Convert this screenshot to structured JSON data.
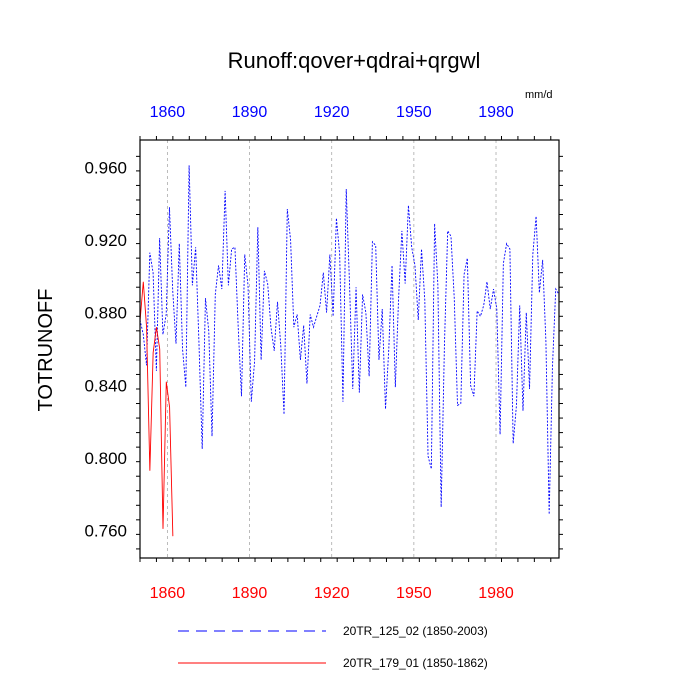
{
  "chart_data": {
    "type": "line",
    "title": "Runoff:qover+qdrai+qrgwl",
    "units": "mm/d",
    "ylabel": "TOTRUNOFF",
    "ylim": [
      0.745,
      0.975
    ],
    "yticks": [
      0.76,
      0.8,
      0.84,
      0.88,
      0.92,
      0.96
    ],
    "ytick_labels": [
      "0.760",
      "0.800",
      "0.840",
      "0.880",
      "0.920",
      "0.960"
    ],
    "bottom_axis": {
      "xlim": [
        1850,
        2003
      ],
      "ticks": [
        1860,
        1890,
        1920,
        1950,
        1980
      ],
      "tick_labels": [
        "1860",
        "1890",
        "1920",
        "1950",
        "1980"
      ],
      "color": "#ff0000"
    },
    "top_axis": {
      "xlim": [
        1850,
        2003
      ],
      "ticks": [
        1860,
        1890,
        1920,
        1950,
        1980
      ],
      "tick_labels": [
        "1860",
        "1890",
        "1920",
        "1950",
        "1980"
      ],
      "color": "#0000ff"
    },
    "grid": "vertical dashed at x ticks",
    "legend_position": "bottom",
    "series": [
      {
        "name": "20TR_125_02 (1850-2003)",
        "color": "#0000ff",
        "dash": "dashed",
        "x_start": 1850,
        "x_end": 2003,
        "values": [
          0.876,
          0.868,
          0.851,
          0.913,
          0.902,
          0.848,
          0.921,
          0.868,
          0.879,
          0.938,
          0.892,
          0.863,
          0.918,
          0.86,
          0.839,
          0.961,
          0.895,
          0.916,
          0.864,
          0.805,
          0.888,
          0.87,
          0.812,
          0.89,
          0.906,
          0.893,
          0.947,
          0.895,
          0.915,
          0.916,
          0.872,
          0.834,
          0.912,
          0.895,
          0.831,
          0.853,
          0.927,
          0.854,
          0.903,
          0.896,
          0.872,
          0.859,
          0.886,
          0.862,
          0.824,
          0.937,
          0.92,
          0.872,
          0.879,
          0.854,
          0.873,
          0.841,
          0.879,
          0.872,
          0.878,
          0.884,
          0.902,
          0.88,
          0.912,
          0.878,
          0.932,
          0.912,
          0.831,
          0.948,
          0.896,
          0.838,
          0.894,
          0.836,
          0.89,
          0.88,
          0.845,
          0.919,
          0.917,
          0.854,
          0.882,
          0.827,
          0.86,
          0.906,
          0.839,
          0.888,
          0.925,
          0.896,
          0.939,
          0.916,
          0.906,
          0.876,
          0.915,
          0.887,
          0.801,
          0.794,
          0.929,
          0.895,
          0.773,
          0.862,
          0.925,
          0.922,
          0.888,
          0.829,
          0.83,
          0.901,
          0.91,
          0.84,
          0.834,
          0.881,
          0.878,
          0.884,
          0.897,
          0.882,
          0.893,
          0.882,
          0.813,
          0.907,
          0.918,
          0.915,
          0.808,
          0.829,
          0.884,
          0.826,
          0.88,
          0.838,
          0.912,
          0.933,
          0.891,
          0.909,
          0.864,
          0.769,
          0.85,
          0.893,
          0.89
        ]
      },
      {
        "name": "20TR_179_01 (1850-1862)",
        "color": "#ff0000",
        "dash": "solid",
        "x_start": 1850,
        "x_end": 1862,
        "values": [
          0.875,
          0.897,
          0.872,
          0.793,
          0.858,
          0.872,
          0.86,
          0.761,
          0.842,
          0.828,
          0.757
        ]
      }
    ]
  }
}
